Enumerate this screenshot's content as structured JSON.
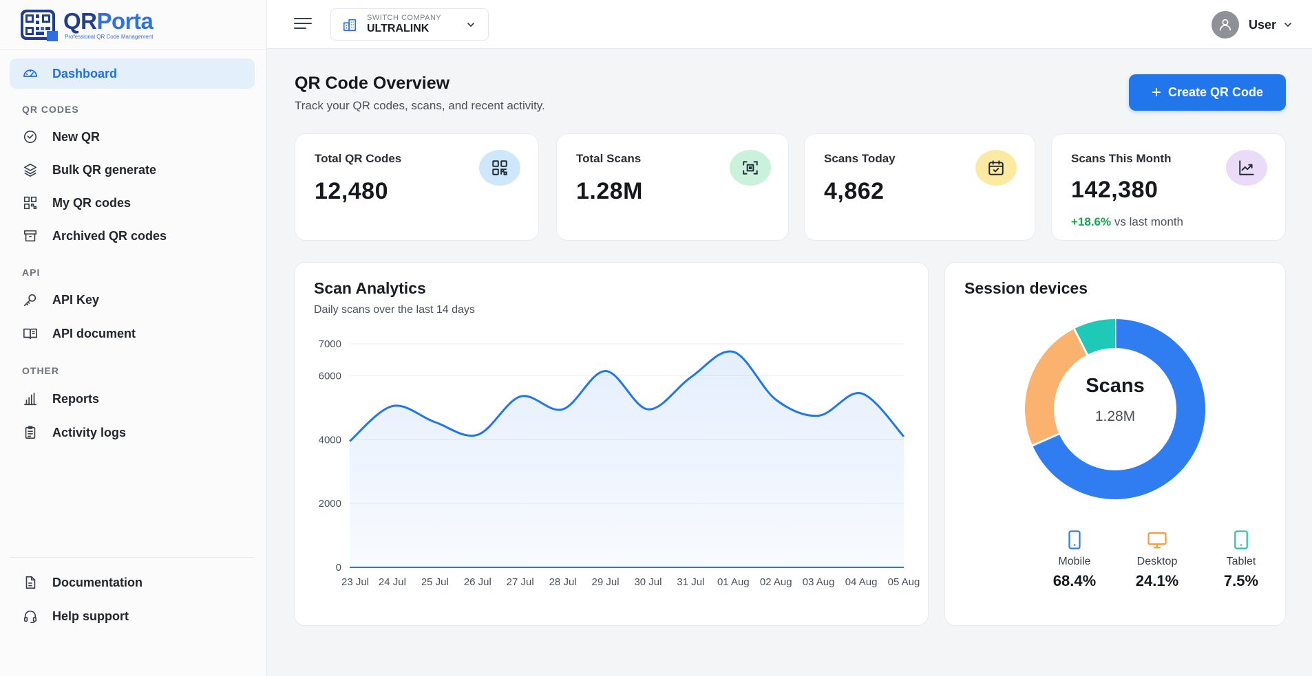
{
  "brand": {
    "name_part1": "QR",
    "name_part2": "Porta",
    "tagline": "Professional QR Code Management"
  },
  "sidebar": {
    "dashboard": {
      "label": "Dashboard",
      "icon": "gauge-icon",
      "active": true
    },
    "sections": [
      {
        "title": "QR CODES",
        "items": [
          {
            "label": "New QR",
            "icon": "qr-scan-icon"
          },
          {
            "label": "Bulk QR generate",
            "icon": "layers-icon"
          },
          {
            "label": "My QR codes",
            "icon": "qr-grid-icon"
          },
          {
            "label": "Archived QR codes",
            "icon": "archive-icon"
          }
        ]
      },
      {
        "title": "API",
        "items": [
          {
            "label": "API Key",
            "icon": "key-icon"
          },
          {
            "label": "API document",
            "icon": "book-icon"
          }
        ]
      },
      {
        "title": "OTHER",
        "items": [
          {
            "label": "Reports",
            "icon": "bar-chart-icon"
          },
          {
            "label": "Activity logs",
            "icon": "clipboard-icon"
          }
        ]
      }
    ],
    "footer": [
      {
        "label": "Documentation",
        "icon": "document-icon"
      },
      {
        "label": "Help support",
        "icon": "headset-icon"
      }
    ]
  },
  "topbar": {
    "company_label": "SWITCH COMPANY",
    "company_name": "ULTRALINK",
    "user_name": "User"
  },
  "header": {
    "title": "QR Code Overview",
    "subtitle": "Track your QR codes, scans, and recent activity.",
    "create_button": "Create QR Code"
  },
  "stats": [
    {
      "label": "Total QR Codes",
      "value": "12,480",
      "icon": "qr-code-icon",
      "color": "#cfe7fb"
    },
    {
      "label": "Total Scans",
      "value": "1.28M",
      "icon": "scan-frame-icon",
      "color": "#c9f1dc"
    },
    {
      "label": "Scans Today",
      "value": "4,862",
      "icon": "calendar-check-icon",
      "color": "#fdeaa2"
    },
    {
      "label": "Scans This Month",
      "value": "142,380",
      "icon": "trend-up-icon",
      "color": "#eadcf9",
      "delta": "+18.6%",
      "delta_suffix": " vs last month"
    }
  ],
  "analytics": {
    "title": "Scan Analytics",
    "subtitle": "Daily scans over the last 14 days"
  },
  "chart_data": {
    "type": "area",
    "x": [
      "23 Jul",
      "24 Jul",
      "25 Jul",
      "26 Jul",
      "27 Jul",
      "28 Jul",
      "29 Jul",
      "30 Jul",
      "31 Jul",
      "01 Aug",
      "02 Aug",
      "03 Aug",
      "04 Aug",
      "05 Aug"
    ],
    "series": [
      {
        "values": [
          3950,
          5050,
          4550,
          4150,
          5350,
          4950,
          6150,
          4950,
          5950,
          6750,
          5250,
          4750,
          5450,
          4100
        ]
      }
    ],
    "y_ticks": [
      0,
      2000,
      4000,
      6000,
      7000
    ],
    "ylim": [
      0,
      7000
    ],
    "grid": true,
    "line_color": "#2176ec"
  },
  "devices": {
    "title": "Session devices",
    "center_label": "Scans",
    "center_value": "1.28M",
    "items": [
      {
        "name": "Mobile",
        "pct": "68.4%",
        "value": 68.4,
        "color": "#2f7df0",
        "icon": "mobile-icon"
      },
      {
        "name": "Desktop",
        "pct": "24.1%",
        "value": 24.1,
        "color": "#fbb26e",
        "icon": "desktop-icon"
      },
      {
        "name": "Tablet",
        "pct": "7.5%",
        "value": 7.5,
        "color": "#1ec9b7",
        "icon": "tablet-icon"
      }
    ]
  }
}
